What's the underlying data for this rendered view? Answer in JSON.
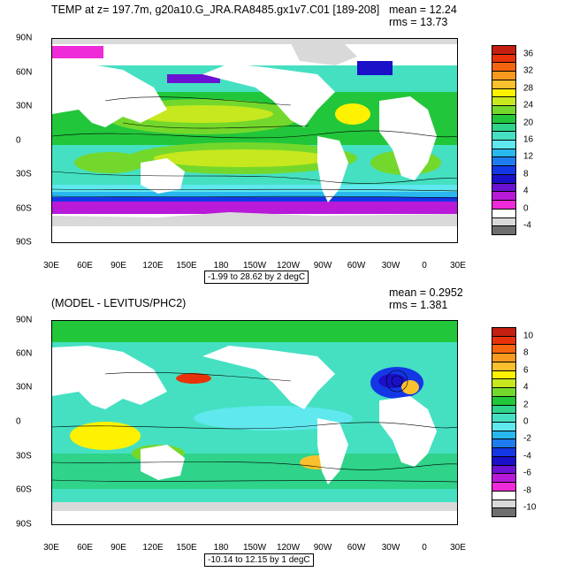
{
  "top": {
    "title": "TEMP at z= 197.7m, g20a10.G_JRA.RA8485.gx1v7.C01 [189-208]",
    "mean": "mean = 12.24",
    "rms": "rms = 13.73",
    "range": "-1.99 to 28.62 by 2 degC",
    "colorbar": {
      "labels": [
        "36",
        "32",
        "28",
        "24",
        "20",
        "16",
        "12",
        "8",
        "4",
        "0",
        "-4"
      ],
      "colors": [
        "#c41f10",
        "#e8330a",
        "#f5640f",
        "#f89a1e",
        "#fbc02d",
        "#fff200",
        "#c7e81e",
        "#74d82c",
        "#22c63a",
        "#2fd38a",
        "#45e0c2",
        "#5fe8ee",
        "#29b8ee",
        "#1f7cee",
        "#1437e6",
        "#1a10c8",
        "#6c12d2",
        "#b81ad8",
        "#ef2ad8",
        "#ffffff",
        "#d9d9d9",
        "#6e6e6e"
      ]
    }
  },
  "bottom": {
    "title": "(MODEL - LEVITUS/PHC2)",
    "mean": "mean = 0.2952",
    "rms": "rms = 1.381",
    "range": "-10.14 to 12.15 by 1 degC",
    "colorbar": {
      "labels": [
        "10",
        "8",
        "6",
        "4",
        "2",
        "0",
        "-2",
        "-4",
        "-6",
        "-8",
        "-10"
      ],
      "colors": [
        "#c41f10",
        "#e8330a",
        "#f5640f",
        "#f89a1e",
        "#fbc02d",
        "#fff200",
        "#c7e81e",
        "#74d82c",
        "#22c63a",
        "#2fd38a",
        "#45e0c2",
        "#5fe8ee",
        "#29b8ee",
        "#1f7cee",
        "#1437e6",
        "#1a10c8",
        "#6c12d2",
        "#b81ad8",
        "#ef2ad8",
        "#ffffff",
        "#d9d9d9",
        "#6e6e6e"
      ]
    }
  },
  "axes": {
    "lat_labels": [
      "90N",
      "60N",
      "30N",
      "0",
      "30S",
      "60S",
      "90S"
    ],
    "lon_labels": [
      "30E",
      "60E",
      "90E",
      "120E",
      "150E",
      "180",
      "150W",
      "120W",
      "90W",
      "60W",
      "30W",
      "0",
      "30E"
    ]
  }
}
